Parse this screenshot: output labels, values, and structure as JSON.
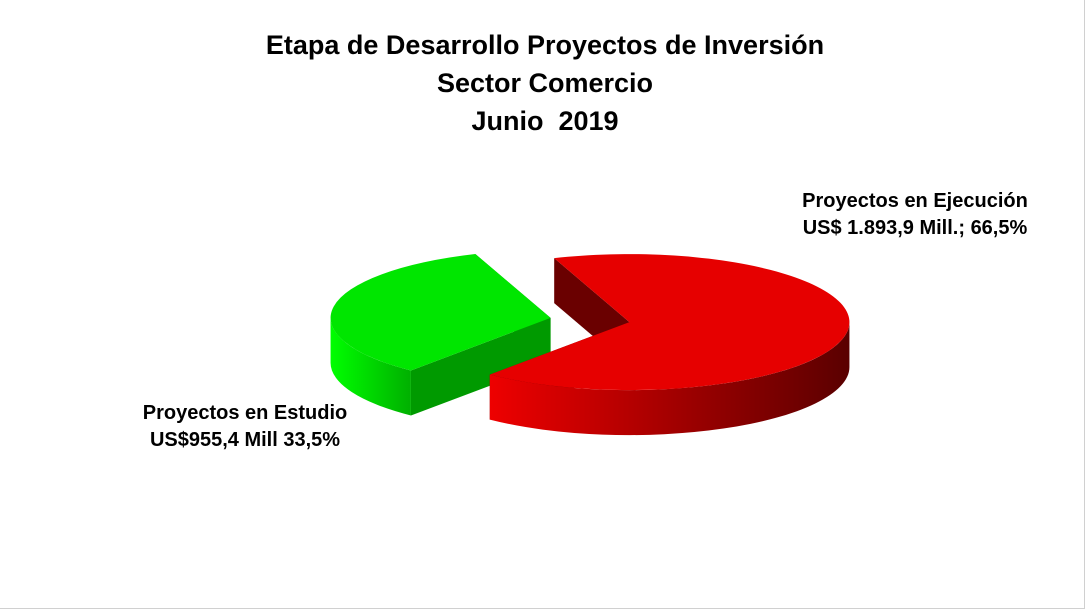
{
  "chart_data": {
    "type": "pie",
    "title": [
      "Etapa de Desarrollo Proyectos de Inversión",
      "Sector Comercio",
      "Junio  2019"
    ],
    "categories": [
      "Proyectos en Estudio",
      "Proyectos en Ejecución"
    ],
    "values": [
      33.5,
      66.5
    ],
    "value_labels": [
      "33,5%",
      "66,5%"
    ],
    "amounts": [
      955.4,
      1893.9
    ],
    "amount_labels": [
      "US$955,4 Mill",
      "US$ 1.893,9 Mill.;"
    ],
    "colors": [
      "#00e600",
      "#e60000"
    ]
  }
}
